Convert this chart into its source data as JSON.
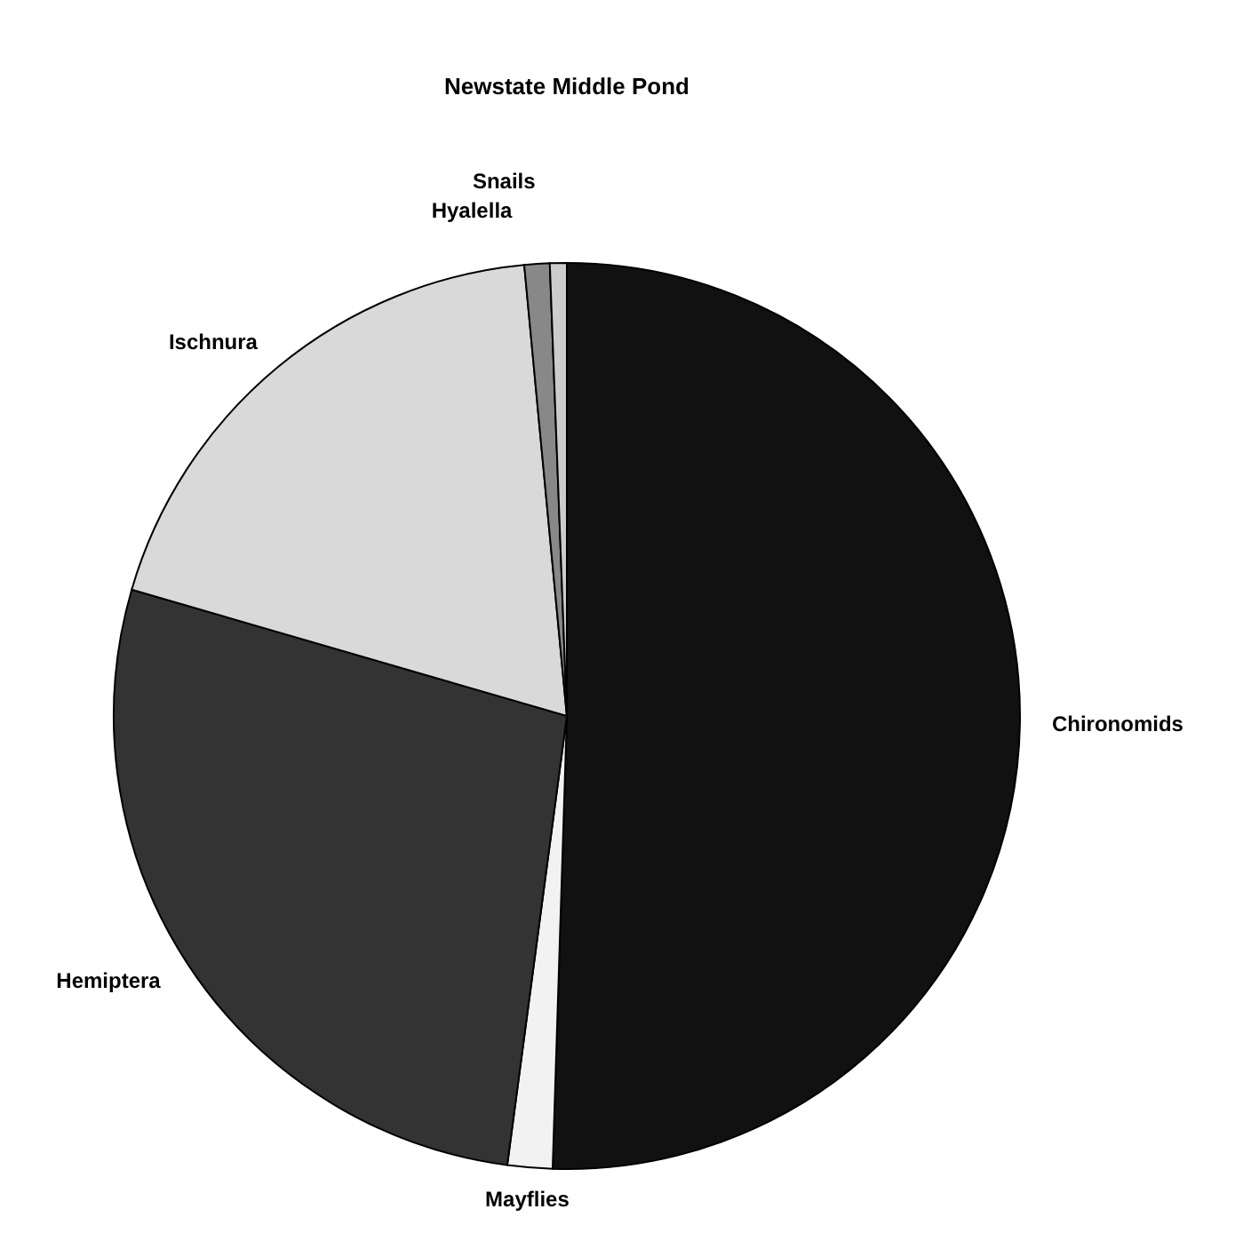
{
  "chart_data": {
    "type": "pie",
    "title": "Newstate Middle  Pond",
    "categories": [
      "Chironomids",
      "Mayflies",
      "Hemiptera",
      "Ischnura",
      "Hyalella",
      "Snails"
    ],
    "values": [
      50.5,
      1.6,
      27.4,
      19.0,
      0.9,
      0.6
    ],
    "colors": [
      "#111111",
      "#f2f2f2",
      "#333333",
      "#d9d9d9",
      "#888888",
      "#cccccc"
    ],
    "legend": false
  }
}
